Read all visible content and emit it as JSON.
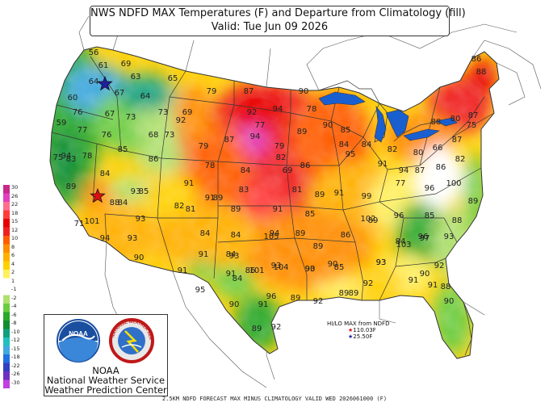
{
  "title": {
    "line1": "NWS NDFD MAX Temperatures (F) and Departure from Climatology (fill)",
    "line2": "Valid: Tue Jun 09 2026"
  },
  "legend": {
    "labels": [
      "30",
      "26",
      "22",
      "18",
      "15",
      "12",
      "10",
      "8",
      "6",
      "4",
      "2",
      "1",
      "-1",
      "-2",
      "-4",
      "-6",
      "-8",
      "-10",
      "-12",
      "-15",
      "-18",
      "-22",
      "-26",
      "-30"
    ],
    "colors": [
      "#c8288c",
      "#e040c0",
      "#ff6e8c",
      "#ff3c3c",
      "#e80000",
      "#f02020",
      "#ff5c00",
      "#ff8c00",
      "#ffb000",
      "#ffd000",
      "#fff060",
      "#ffffff",
      "#ffffff",
      "#b0e070",
      "#6ccc40",
      "#2aa82a",
      "#108c30",
      "#10a080",
      "#20c0c0",
      "#40a8e0",
      "#2070e0",
      "#3040c0",
      "#7030c0",
      "#c040e0"
    ]
  },
  "logo": {
    "noaa_text": "NOAA",
    "nws_ring_text": "NATIONAL WEATHER SERVICE",
    "org_line1": "NOAA",
    "org_line2": "National Weather Service",
    "org_line3": "Weather Prediction Center"
  },
  "hilo": {
    "title": "HI/LO MAX from NDFD",
    "hi": "110.03F",
    "lo": "25.50F",
    "hi_color": "#e01010",
    "lo_color": "#2020a0"
  },
  "footer": "2.5KM NDFD FORECAST MAX MINUS CLIMATOLOGY VALID WED 2026061000 (F)",
  "temps": [
    "56",
    "61",
    "69",
    "63",
    "65",
    "64",
    "67",
    "64",
    "60",
    "79",
    "87",
    "90",
    "92",
    "94",
    "86",
    "88",
    "78",
    "76",
    "67",
    "73",
    "73",
    "69",
    "77",
    "92",
    "90",
    "85",
    "59",
    "77",
    "76",
    "68",
    "73",
    "79",
    "87",
    "94",
    "79",
    "89",
    "88",
    "80",
    "87",
    "94",
    "78",
    "82",
    "84",
    "84",
    "82",
    "80",
    "66",
    "87",
    "75",
    "75",
    "83",
    "85",
    "86",
    "78",
    "84",
    "69",
    "86",
    "95",
    "94",
    "91",
    "87",
    "86",
    "82",
    "84",
    "89",
    "88",
    "93",
    "91",
    "91",
    "83",
    "81",
    "89",
    "91",
    "99",
    "77",
    "96",
    "100",
    "89",
    "84",
    "85",
    "82",
    "89",
    "89",
    "91",
    "85",
    "102",
    "96",
    "85",
    "88",
    "84",
    "94",
    "89",
    "84",
    "71",
    "101",
    "93",
    "81",
    "89",
    "86",
    "89",
    "84",
    "96",
    "93",
    "93",
    "105",
    "104",
    "94",
    "93",
    "84",
    "90",
    "90",
    "103",
    "97",
    "90",
    "91",
    "84",
    "101",
    "93",
    "93",
    "92",
    "91",
    "86",
    "93",
    "85",
    "93",
    "90",
    "88",
    "95",
    "91",
    "92",
    "91",
    "90",
    "90",
    "91",
    "96",
    "89",
    "92",
    "89",
    "89",
    "91",
    "89",
    "92"
  ],
  "stars": [
    {
      "name": "high",
      "color": "#e01010"
    },
    {
      "name": "low",
      "color": "#2020a0"
    }
  ]
}
